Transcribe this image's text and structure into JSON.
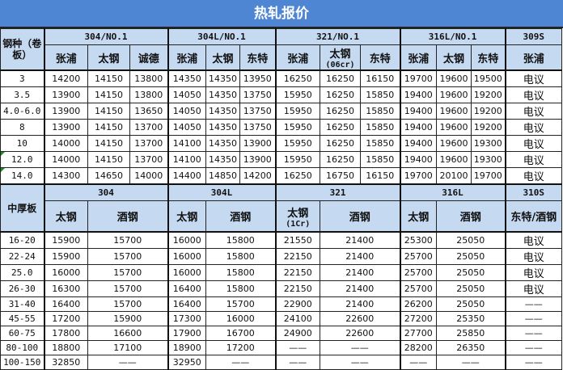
{
  "title": "热轧报价",
  "coil": {
    "label": "钢种（卷板）",
    "groups": [
      {
        "name": "304/NO.1",
        "subs": [
          "张浦",
          "太钢",
          "诚德"
        ]
      },
      {
        "name": "304L/NO.1",
        "subs": [
          "张浦",
          "太钢",
          "东特"
        ]
      },
      {
        "name": "321/NO.1",
        "subs": [
          "张浦",
          "太钢",
          "东特"
        ],
        "sub_note": "(06cr)"
      },
      {
        "name": "316L/NO.1",
        "subs": [
          "张浦",
          "太钢",
          "东特"
        ]
      },
      {
        "name": "309S",
        "subs": [
          "张浦"
        ]
      }
    ],
    "rows": [
      {
        "spec": "3",
        "values": [
          "14200",
          "14150",
          "13800",
          "14350",
          "14350",
          "13950",
          "16250",
          "16250",
          "16150",
          "19700",
          "19600",
          "19500",
          "电议"
        ]
      },
      {
        "spec": "3.5",
        "values": [
          "13900",
          "14150",
          "13800",
          "14050",
          "14350",
          "13750",
          "15950",
          "16250",
          "15850",
          "19400",
          "19600",
          "19200",
          "电议"
        ]
      },
      {
        "spec": "4.0-6.0",
        "values": [
          "13900",
          "14150",
          "13650",
          "14050",
          "14350",
          "13750",
          "15950",
          "16250",
          "15850",
          "19400",
          "19600",
          "19200",
          "电议"
        ]
      },
      {
        "spec": "8",
        "values": [
          "13900",
          "14150",
          "13700",
          "14050",
          "14350",
          "13750",
          "15950",
          "16250",
          "15850",
          "19400",
          "19600",
          "19200",
          "电议"
        ]
      },
      {
        "spec": "10",
        "values": [
          "14000",
          "14150",
          "13700",
          "14100",
          "14350",
          "13900",
          "15950",
          "16250",
          "15850",
          "19400",
          "19600",
          "19300",
          "电议"
        ]
      },
      {
        "spec": "12.0",
        "values": [
          "14000",
          "14150",
          "13700",
          "14100",
          "14350",
          "13900",
          "15950",
          "16250",
          "15850",
          "19400",
          "19600",
          "19300",
          "电议"
        ]
      },
      {
        "spec": "14.0",
        "values": [
          "14300",
          "14650",
          "14000",
          "14400",
          "14850",
          "14200",
          "16250",
          "16750",
          "16150",
          "19700",
          "20100",
          "19700",
          "电议"
        ]
      }
    ]
  },
  "plate": {
    "label": "中厚板",
    "groups": [
      {
        "name": "304",
        "subs": [
          "太钢",
          "酒钢"
        ]
      },
      {
        "name": "304L",
        "subs": [
          "太钢",
          "酒钢"
        ]
      },
      {
        "name": "321",
        "subs": [
          "太钢",
          "酒钢"
        ],
        "sub_note": "(1Cr)"
      },
      {
        "name": "316L",
        "subs": [
          "太钢",
          "酒钢"
        ]
      },
      {
        "name": "310S",
        "subs": [
          "东特/酒钢"
        ]
      }
    ],
    "rows": [
      {
        "spec": "16-20",
        "values": [
          "15900",
          "15700",
          "16000",
          "15800",
          "21550",
          "21400",
          "25300",
          "25050",
          "电议"
        ]
      },
      {
        "spec": "22-24",
        "values": [
          "15900",
          "15700",
          "16000",
          "15800",
          "22150",
          "21400",
          "25700",
          "25050",
          "电议"
        ]
      },
      {
        "spec": "25.0",
        "values": [
          "16000",
          "15700",
          "16000",
          "15800",
          "22150",
          "21400",
          "25700",
          "25050",
          "电议"
        ]
      },
      {
        "spec": "26-30",
        "values": [
          "16300",
          "15700",
          "16400",
          "15800",
          "22150",
          "21400",
          "25700",
          "25050",
          "电议"
        ]
      },
      {
        "spec": "31-40",
        "values": [
          "16400",
          "15700",
          "16400",
          "15700",
          "22900",
          "21400",
          "26200",
          "25050",
          "——"
        ]
      },
      {
        "spec": "45-55",
        "values": [
          "17200",
          "15900",
          "17300",
          "16000",
          "24100",
          "22600",
          "27200",
          "25350",
          "——"
        ]
      },
      {
        "spec": "60-75",
        "values": [
          "17800",
          "16600",
          "17900",
          "16700",
          "24900",
          "22600",
          "27700",
          "25850",
          "——"
        ]
      },
      {
        "spec": "80-100",
        "values": [
          "18800",
          "17100",
          "18900",
          "17200",
          "——",
          "——",
          "28200",
          "26350",
          "——"
        ]
      },
      {
        "spec": "100-150",
        "values": [
          "32850",
          "——",
          "32950",
          "——",
          "——",
          "——",
          "——",
          "——",
          "——"
        ]
      }
    ]
  }
}
